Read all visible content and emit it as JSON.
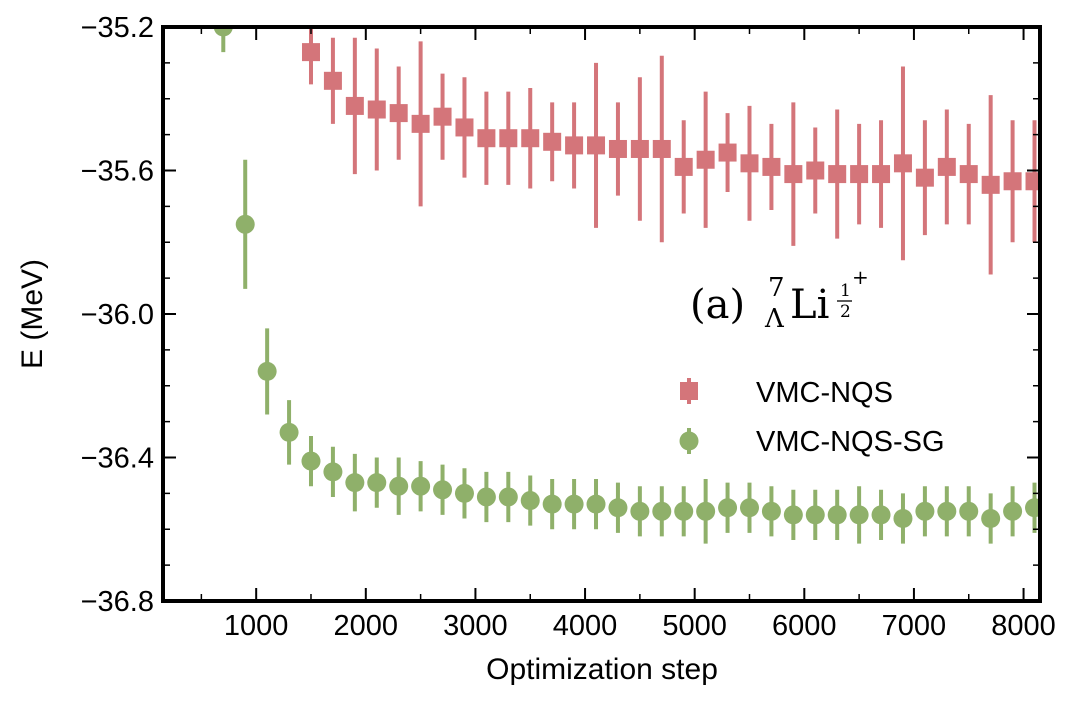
{
  "chart_data": {
    "type": "scatter",
    "title": "",
    "xlabel": "Optimization step",
    "ylabel": "E (MeV)",
    "xlim": [
      150,
      8150
    ],
    "ylim": [
      -36.8,
      -35.2
    ],
    "xticks": [
      1000,
      2000,
      3000,
      4000,
      5000,
      6000,
      7000,
      8000
    ],
    "yticks": [
      -36.8,
      -36.4,
      -36.0,
      -35.6,
      -35.2
    ],
    "ytick_labels": [
      "−36.8",
      "−36.4",
      "−36.0",
      "−35.6",
      "−35.2"
    ],
    "grid": false,
    "legend_position": "center-right",
    "annotation": {
      "prefix": "(a)",
      "mass": "7",
      "lambda": "Λ",
      "element": "Li",
      "spin_num": "1",
      "spin_den": "2",
      "parity": "+"
    },
    "series": [
      {
        "name": "VMC-NQS",
        "color": "#d4757a",
        "marker": "square",
        "x": [
          1500,
          1700,
          1900,
          2100,
          2300,
          2500,
          2700,
          2900,
          3100,
          3300,
          3500,
          3700,
          3900,
          4100,
          4300,
          4500,
          4700,
          4900,
          5100,
          5300,
          5500,
          5700,
          5900,
          6100,
          6300,
          6500,
          6700,
          6900,
          7100,
          7300,
          7500,
          7700,
          7900,
          8100
        ],
        "y": [
          -35.27,
          -35.35,
          -35.42,
          -35.43,
          -35.44,
          -35.47,
          -35.45,
          -35.48,
          -35.51,
          -35.51,
          -35.51,
          -35.52,
          -35.53,
          -35.53,
          -35.54,
          -35.54,
          -35.54,
          -35.59,
          -35.57,
          -35.55,
          -35.58,
          -35.59,
          -35.61,
          -35.6,
          -35.61,
          -35.61,
          -35.61,
          -35.58,
          -35.62,
          -35.59,
          -35.61,
          -35.64,
          -35.63,
          -35.63
        ],
        "err": [
          0.09,
          0.12,
          0.19,
          0.17,
          0.13,
          0.23,
          0.12,
          0.14,
          0.13,
          0.13,
          0.14,
          0.11,
          0.12,
          0.23,
          0.13,
          0.2,
          0.26,
          0.13,
          0.19,
          0.11,
          0.16,
          0.12,
          0.2,
          0.12,
          0.18,
          0.14,
          0.15,
          0.27,
          0.16,
          0.16,
          0.14,
          0.25,
          0.17,
          0.17
        ]
      },
      {
        "name": "VMC-NQS-SG",
        "color": "#8fb06a",
        "marker": "circle",
        "x": [
          700,
          900,
          1100,
          1300,
          1500,
          1700,
          1900,
          2100,
          2300,
          2500,
          2700,
          2900,
          3100,
          3300,
          3500,
          3700,
          3900,
          4100,
          4300,
          4500,
          4700,
          4900,
          5100,
          5300,
          5500,
          5700,
          5900,
          6100,
          6300,
          6500,
          6700,
          6900,
          7100,
          7300,
          7500,
          7700,
          7900,
          8100
        ],
        "y": [
          -35.2,
          -35.75,
          -36.16,
          -36.33,
          -36.41,
          -36.44,
          -36.47,
          -36.47,
          -36.48,
          -36.48,
          -36.49,
          -36.5,
          -36.51,
          -36.51,
          -36.52,
          -36.53,
          -36.53,
          -36.53,
          -36.54,
          -36.55,
          -36.55,
          -36.55,
          -36.55,
          -36.54,
          -36.54,
          -36.55,
          -36.56,
          -36.56,
          -36.56,
          -36.56,
          -36.56,
          -36.57,
          -36.55,
          -36.55,
          -36.55,
          -36.57,
          -36.55,
          -36.54
        ],
        "err": [
          0.07,
          0.18,
          0.12,
          0.09,
          0.07,
          0.07,
          0.08,
          0.07,
          0.08,
          0.07,
          0.07,
          0.07,
          0.07,
          0.07,
          0.07,
          0.07,
          0.07,
          0.07,
          0.07,
          0.07,
          0.07,
          0.07,
          0.09,
          0.07,
          0.07,
          0.07,
          0.07,
          0.07,
          0.07,
          0.08,
          0.07,
          0.07,
          0.07,
          0.07,
          0.07,
          0.07,
          0.07,
          0.07
        ]
      }
    ]
  }
}
